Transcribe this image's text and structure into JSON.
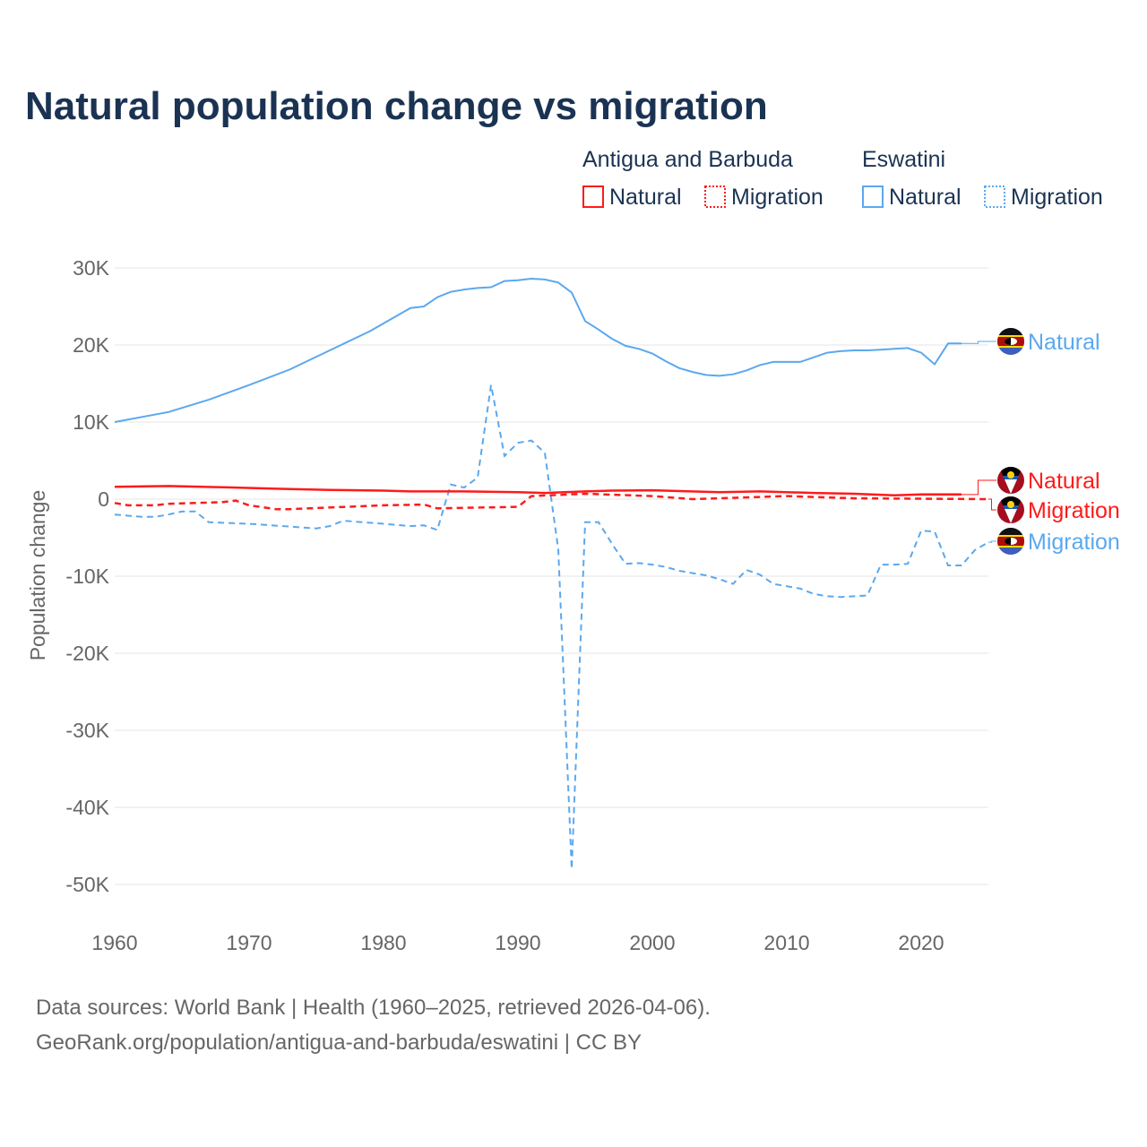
{
  "chart_data": {
    "type": "line",
    "title": "Natural population change vs migration",
    "xlabel": "",
    "ylabel": "Population change",
    "xlim": [
      1960,
      2025
    ],
    "ylim": [
      -50000,
      30000
    ],
    "grid": true,
    "x_ticks": [
      "1960",
      "1970",
      "1980",
      "1990",
      "2000",
      "2010",
      "2020"
    ],
    "y_ticks": [
      {
        "v": 30000,
        "label": "30K"
      },
      {
        "v": 20000,
        "label": "20K"
      },
      {
        "v": 10000,
        "label": "10K"
      },
      {
        "v": 0,
        "label": "0"
      },
      {
        "v": -10000,
        "label": "-10K"
      },
      {
        "v": -20000,
        "label": "-20K"
      },
      {
        "v": -30000,
        "label": "-30K"
      },
      {
        "v": -40000,
        "label": "-40K"
      },
      {
        "v": -50000,
        "label": "-50K"
      }
    ],
    "legend": {
      "placement": "top-right",
      "groups": [
        {
          "country": "Antigua and Barbuda",
          "entries": [
            "Natural",
            "Migration"
          ]
        },
        {
          "country": "Eswatini",
          "entries": [
            "Natural",
            "Migration"
          ]
        }
      ]
    },
    "colors": {
      "antigua": "#ff1a1a",
      "eswatini": "#5ba8ee"
    },
    "series": [
      {
        "name": "Eswatini Natural",
        "country": "eswatini",
        "style": "solid",
        "label": "Natural",
        "x": [
          1960,
          1964,
          1967,
          1970,
          1973,
          1976,
          1979,
          1982,
          1983,
          1984,
          1985,
          1986,
          1987,
          1988,
          1989,
          1990,
          1991,
          1992,
          1993,
          1994,
          1995,
          1996,
          1997,
          1998,
          1999,
          2000,
          2001,
          2002,
          2003,
          2004,
          2005,
          2006,
          2007,
          2008,
          2009,
          2010,
          2011,
          2012,
          2013,
          2014,
          2015,
          2016,
          2017,
          2018,
          2019,
          2020,
          2021,
          2022,
          2023
        ],
        "values": [
          10000,
          11300,
          12900,
          14800,
          16800,
          19300,
          21800,
          24800,
          25000,
          26200,
          26900,
          27200,
          27400,
          27500,
          28300,
          28400,
          28600,
          28500,
          28100,
          26800,
          23100,
          22000,
          20800,
          19900,
          19500,
          18900,
          17900,
          17000,
          16500,
          16100,
          16000,
          16200,
          16700,
          17400,
          17800,
          17800,
          17800,
          18400,
          19000,
          19200,
          19300,
          19300,
          19400,
          19500,
          19600,
          19000,
          17500,
          20200,
          20200
        ]
      },
      {
        "name": "Eswatini Migration",
        "country": "eswatini",
        "style": "dashed",
        "label": "Migration",
        "x": [
          1960,
          1962,
          1963,
          1964,
          1965,
          1966,
          1967,
          1970,
          1975,
          1976,
          1977,
          1980,
          1982,
          1983,
          1984,
          1985,
          1986,
          1987,
          1988,
          1989,
          1990,
          1991,
          1992,
          1993,
          1994,
          1995,
          1996,
          1997,
          1998,
          1999,
          2000,
          2001,
          2002,
          2003,
          2004,
          2005,
          2006,
          2007,
          2008,
          2009,
          2010,
          2011,
          2012,
          2013,
          2014,
          2015,
          2016,
          2017,
          2018,
          2019,
          2020,
          2021,
          2022,
          2023,
          2024,
          2025
        ],
        "values": [
          -2000,
          -2300,
          -2300,
          -2000,
          -1600,
          -1600,
          -3000,
          -3200,
          -3800,
          -3500,
          -2800,
          -3200,
          -3500,
          -3400,
          -4000,
          1900,
          1500,
          2800,
          14800,
          5600,
          7300,
          7600,
          6000,
          -6500,
          -48000,
          -3000,
          -3000,
          -5800,
          -8400,
          -8300,
          -8500,
          -8800,
          -9300,
          -9600,
          -9900,
          -10400,
          -11000,
          -9200,
          -9800,
          -11000,
          -11300,
          -11600,
          -12300,
          -12600,
          -12700,
          -12600,
          -12500,
          -8500,
          -8500,
          -8400,
          -4100,
          -4200,
          -8600,
          -8600,
          -6600,
          -5600
        ]
      },
      {
        "name": "Antigua and Barbuda Natural",
        "country": "antigua",
        "style": "solid",
        "label": "Natural",
        "x": [
          1960,
          1964,
          1968,
          1972,
          1976,
          1980,
          1982,
          1986,
          1990,
          1992,
          1995,
          1997,
          2000,
          2005,
          2008,
          2012,
          2015,
          2018,
          2020,
          2023
        ],
        "values": [
          1600,
          1700,
          1550,
          1350,
          1200,
          1100,
          1000,
          1000,
          900,
          800,
          1000,
          1100,
          1150,
          900,
          1000,
          800,
          700,
          500,
          600,
          600
        ]
      },
      {
        "name": "Antigua and Barbuda Migration",
        "country": "antigua",
        "style": "dashed",
        "label": "Migration",
        "x": [
          1960,
          1961,
          1963,
          1964,
          1968,
          1969,
          1970,
          1972,
          1973,
          1980,
          1983,
          1984,
          1990,
          1991,
          1995,
          2000,
          2003,
          2010,
          2015,
          2025
        ],
        "values": [
          -500,
          -800,
          -800,
          -600,
          -400,
          -200,
          -800,
          -1300,
          -1300,
          -800,
          -700,
          -1200,
          -1000,
          400,
          700,
          400,
          0,
          400,
          100,
          0
        ]
      }
    ]
  },
  "source": {
    "line1": "Data sources: World Bank | Health (1960–2025, retrieved 2026-04-06).",
    "line2": "GeoRank.org/population/antigua-and-barbuda/eswatini | CC BY"
  }
}
